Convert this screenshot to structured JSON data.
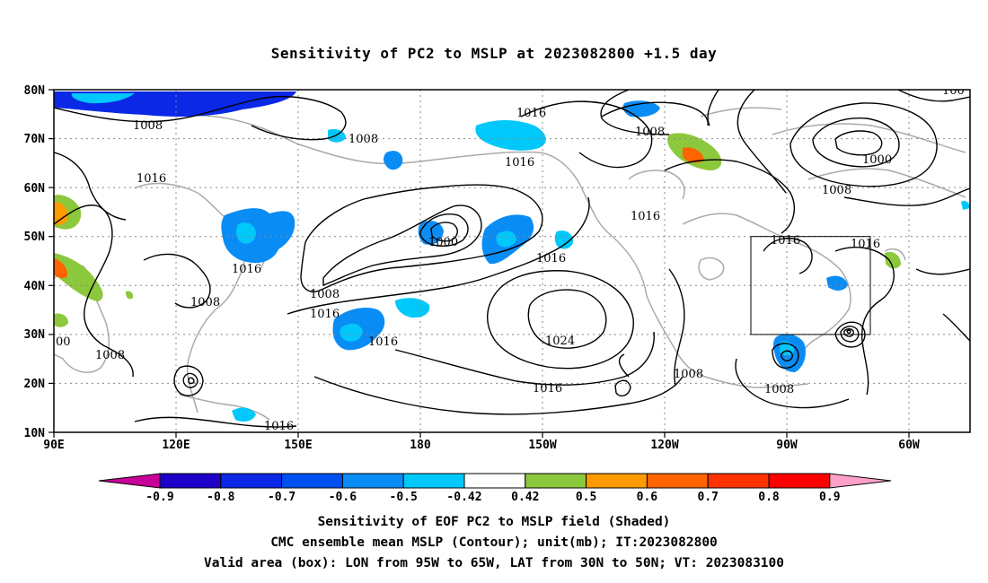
{
  "title": "Sensitivity of PC2 to MSLP at 2023082800 +1.5 day",
  "map": {
    "lat_labels": [
      "80N",
      "70N",
      "60N",
      "50N",
      "40N",
      "30N",
      "20N",
      "10N"
    ],
    "lon_labels": [
      "90E",
      "120E",
      "150E",
      "180",
      "150W",
      "120W",
      "90W",
      "60W"
    ],
    "contour_labels": [
      "1008",
      "1008",
      "1016",
      "1016",
      "1008",
      "1016",
      "1000",
      "1016",
      "1008",
      "1016",
      "1000",
      "1016",
      "1016",
      "1016",
      "1008",
      "1016",
      "1016",
      "1024",
      "1008",
      "1016",
      "1008",
      "00",
      "1008",
      "1008",
      "1016",
      "1008",
      "100"
    ],
    "valid_box": {
      "lon_min": -95,
      "lon_max": -65,
      "lat_min": 30,
      "lat_max": 50
    },
    "colors": {
      "land": "#aaaaaa",
      "contour": "#000000",
      "grid": "#888888"
    }
  },
  "colorbar": {
    "tick_labels": [
      "-0.9",
      "-0.8",
      "-0.7",
      "-0.6",
      "-0.5",
      "-0.42",
      "0.42",
      "0.5",
      "0.6",
      "0.7",
      "0.8",
      "0.9"
    ],
    "colors": [
      "#c8009a",
      "#1e00c8",
      "#0a28e6",
      "#0050f0",
      "#0a8cf5",
      "#00c8fa",
      "#ffffff",
      "#8cc83c",
      "#ff9a00",
      "#ff6400",
      "#ff3200",
      "#ff0000",
      "#ffa0c8"
    ]
  },
  "caption": {
    "line1": "Sensitivity of EOF PC2 to MSLP field (Shaded)",
    "line2": "CMC ensemble mean MSLP (Contour); unit(mb); IT:2023082800",
    "line3": "Valid area (box): LON from 95W to 65W, LAT from 30N to 50N; VT: 2023083100"
  }
}
